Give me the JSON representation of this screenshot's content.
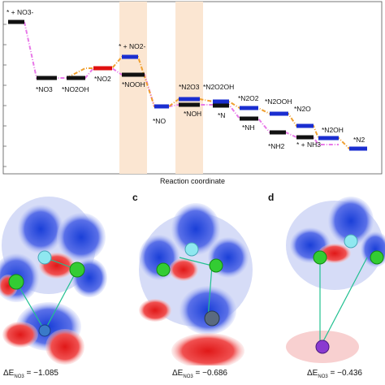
{
  "chart_data": {
    "type": "line",
    "xlabel": "Reaction coordinate",
    "states": [
      {
        "label": "* + NO3-",
        "color": "black"
      },
      {
        "label": "*NO3",
        "color": "black"
      },
      {
        "label": "*NO2OH",
        "color": "black"
      },
      {
        "label": "*NO2",
        "color": "red"
      },
      {
        "label": "* + NO2-",
        "color": "blue"
      },
      {
        "label": "*NOOH",
        "color": "black"
      },
      {
        "label": "*NO",
        "color": "blue"
      },
      {
        "label": "*N2O3",
        "color": "blue"
      },
      {
        "label": "*NOH",
        "color": "black"
      },
      {
        "label": "*N2O2OH",
        "color": "blue"
      },
      {
        "label": "*N",
        "color": "black"
      },
      {
        "label": "*N2O2",
        "color": "blue"
      },
      {
        "label": "*NH",
        "color": "black"
      },
      {
        "label": "*N2OOH",
        "color": "blue"
      },
      {
        "label": "*NH2",
        "color": "black"
      },
      {
        "label": "*N2O",
        "color": "blue"
      },
      {
        "label": "* + NH3",
        "color": "black"
      },
      {
        "label": "*N2OH",
        "color": "blue"
      },
      {
        "label": "*N2",
        "color": "blue"
      }
    ]
  },
  "panels": [
    {
      "letter": "",
      "delta_label": "ΔE",
      "delta_sub": "NO3",
      "delta_value": "= −1.085"
    },
    {
      "letter": "c",
      "delta_label": "ΔE",
      "delta_sub": "NO3",
      "delta_value": "= −0.686"
    },
    {
      "letter": "d",
      "delta_label": "ΔE",
      "delta_sub": "NO3",
      "delta_value": "= −0.436"
    }
  ],
  "colors": {
    "pink": "#e879e8",
    "orange": "#f0a030",
    "black": "#111111",
    "red": "#e01010",
    "blue": "#1a2ed0",
    "band": "#fbe6d2"
  }
}
